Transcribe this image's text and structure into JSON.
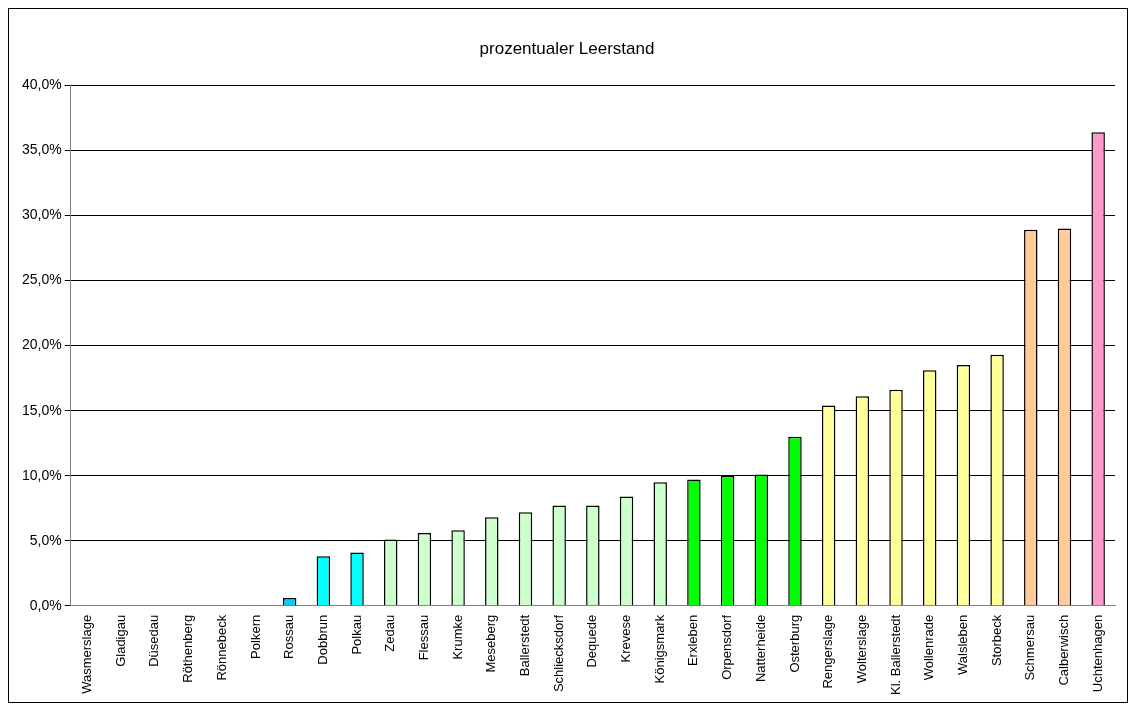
{
  "chart_data": {
    "type": "bar",
    "title": "prozentualer Leerstand",
    "categories": [
      "Wasmerslage",
      "Gladigau",
      "Düsedau",
      "Röthenberg",
      "Rönnebeck",
      "Polkern",
      "Rossau",
      "Dobbrun",
      "Polkau",
      "Zedau",
      "Flessau",
      "Krumke",
      "Meseberg",
      "Ballerstedt",
      "Schliecksdorf",
      "Dequede",
      "Krevese",
      "Königsmark",
      "Erxleben",
      "Orpensdorf",
      "Natterheide",
      "Osterburg",
      "Rengerslage",
      "Wolterslage",
      "Kl. Ballerstedt",
      "Wollenrade",
      "Walsleben",
      "Storbeck",
      "Schmersau",
      "Calberwisch",
      "Uchtenhagen"
    ],
    "values": [
      0,
      0,
      0,
      0,
      0,
      0,
      0.6,
      3.8,
      4.1,
      5.1,
      5.6,
      5.8,
      6.8,
      7.2,
      7.7,
      7.7,
      8.4,
      9.5,
      9.7,
      10.0,
      10.1,
      13.0,
      15.4,
      16.1,
      16.6,
      18.1,
      18.5,
      19.3,
      28.9,
      29.0,
      36.4
    ],
    "colors": [
      "#00ccff",
      "#00ccff",
      "#00ccff",
      "#00ccff",
      "#00ccff",
      "#00ccff",
      "#00ccff",
      "#00ffff",
      "#00ffff",
      "#ccffcc",
      "#ccffcc",
      "#ccffcc",
      "#ccffcc",
      "#ccffcc",
      "#ccffcc",
      "#ccffcc",
      "#ccffcc",
      "#ccffcc",
      "#00ff00",
      "#00ff00",
      "#00ff00",
      "#00ff00",
      "#ffff99",
      "#ffff99",
      "#ffff99",
      "#ffff99",
      "#ffff99",
      "#ffff99",
      "#ffcc99",
      "#ffcc99",
      "#ff99cc"
    ],
    "ylim": [
      0,
      40
    ],
    "yticks": [
      {
        "value": 0,
        "label": "0,0%"
      },
      {
        "value": 5,
        "label": "5,0%"
      },
      {
        "value": 10,
        "label": "10,0%"
      },
      {
        "value": 15,
        "label": "15,0%"
      },
      {
        "value": 20,
        "label": "20,0%"
      },
      {
        "value": 25,
        "label": "25,0%"
      },
      {
        "value": 30,
        "label": "30,0%"
      },
      {
        "value": 35,
        "label": "35,0%"
      },
      {
        "value": 40,
        "label": "40,0%"
      }
    ],
    "grid": "y",
    "legend": false
  }
}
